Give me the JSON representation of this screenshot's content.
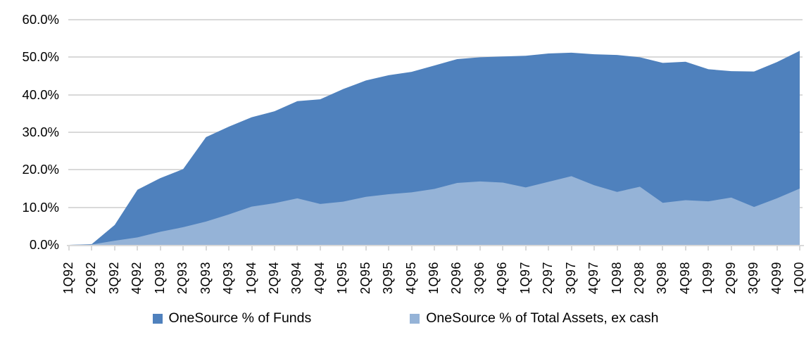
{
  "chart_data": {
    "type": "area",
    "stacked": false,
    "title": "",
    "xlabel": "",
    "ylabel": "",
    "ylim": [
      0,
      60
    ],
    "grid": true,
    "legend_position": "bottom",
    "y_tick_labels": [
      "0.0%",
      "10.0%",
      "20.0%",
      "30.0%",
      "40.0%",
      "50.0%",
      "60.0%"
    ],
    "categories": [
      "1Q92",
      "2Q92",
      "3Q92",
      "4Q92",
      "1Q93",
      "2Q93",
      "3Q93",
      "4Q93",
      "1Q94",
      "2Q94",
      "3Q94",
      "4Q94",
      "1Q95",
      "2Q95",
      "3Q95",
      "4Q95",
      "1Q96",
      "2Q96",
      "3Q96",
      "4Q96",
      "1Q97",
      "2Q97",
      "3Q97",
      "4Q97",
      "1Q98",
      "2Q98",
      "3Q98",
      "4Q98",
      "1Q99",
      "2Q99",
      "3Q99",
      "4Q99",
      "1Q00"
    ],
    "series": [
      {
        "name": "OneSource % of Funds",
        "color": "#4F81BD",
        "values": [
          0.0,
          0.2,
          5.3,
          14.7,
          17.8,
          20.2,
          28.7,
          31.5,
          34.0,
          35.6,
          38.3,
          38.8,
          41.5,
          43.8,
          45.2,
          46.1,
          47.8,
          49.5,
          50.0,
          50.2,
          50.4,
          51.0,
          51.2,
          50.8,
          50.6,
          50.0,
          48.5,
          48.8,
          46.8,
          46.3,
          46.2,
          48.7,
          51.7
        ]
      },
      {
        "name": "OneSource % of Total Assets, ex cash",
        "color": "#95B3D7",
        "values": [
          0.0,
          0.1,
          1.1,
          2.0,
          3.5,
          4.7,
          6.2,
          8.1,
          10.2,
          11.1,
          12.4,
          10.9,
          11.5,
          12.8,
          13.5,
          14.0,
          14.9,
          16.5,
          16.9,
          16.6,
          15.3,
          16.8,
          18.3,
          15.9,
          14.1,
          15.5,
          11.2,
          11.9,
          11.6,
          12.6,
          10.1,
          12.4,
          15.0
        ]
      }
    ]
  },
  "colors": {
    "gridline": "#D9D9D9",
    "axis_line": "#D9D9D9",
    "text": "#000000",
    "background": "#FFFFFF"
  }
}
